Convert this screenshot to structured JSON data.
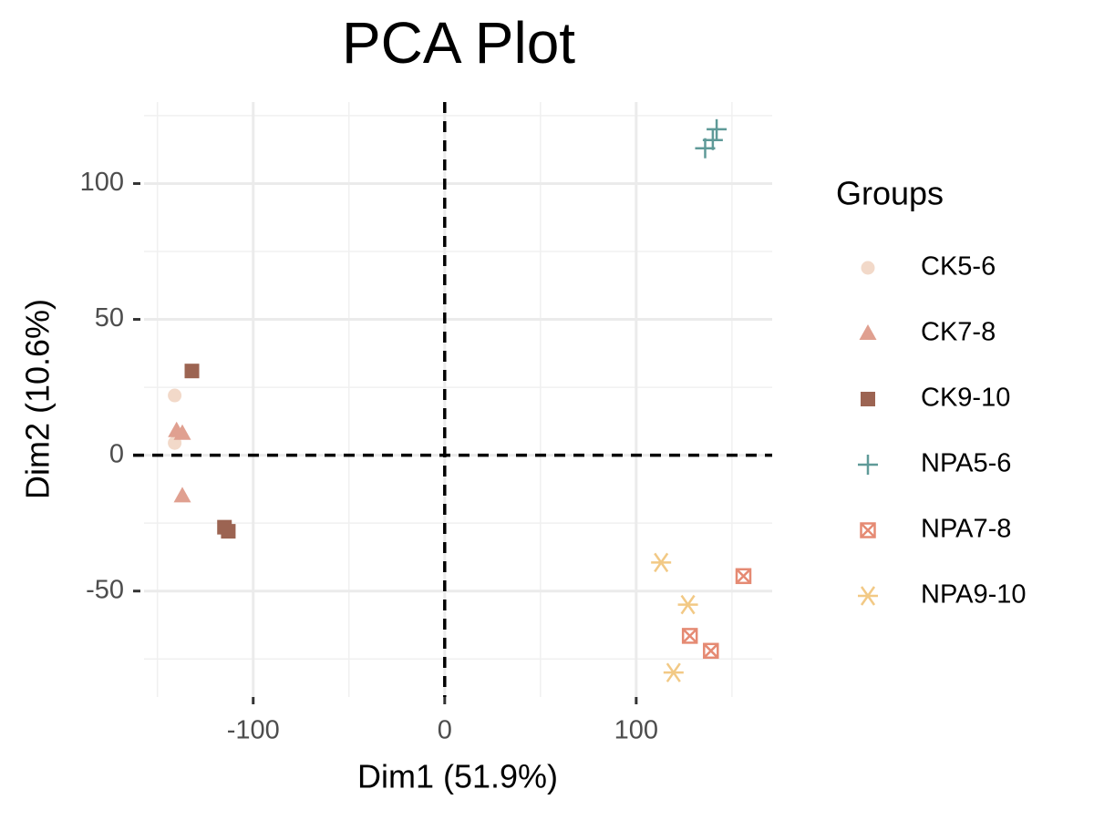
{
  "chart_data": {
    "type": "scatter",
    "title": "PCA Plot",
    "x_label": "Dim1 (51.9%)",
    "y_label": "Dim2 (10.6%)",
    "xlim": [
      -157,
      171
    ],
    "ylim": [
      -89,
      130
    ],
    "xticks": [
      -100,
      0,
      100
    ],
    "yticks": [
      -50,
      0,
      50,
      100
    ],
    "grid": true,
    "zero_lines": true,
    "legend_title": "Groups",
    "legend_position": "right",
    "series": [
      {
        "name": "CK5-6",
        "color": "#f2d9c9",
        "shape": "circle",
        "x": [
          -141,
          -141
        ],
        "y": [
          22,
          4.5
        ]
      },
      {
        "name": "CK7-8",
        "color": "#e0a090",
        "shape": "triangle",
        "x": [
          -140,
          -137,
          -137
        ],
        "y": [
          9,
          8,
          -15
        ]
      },
      {
        "name": "CK9-10",
        "color": "#9c6452",
        "shape": "square",
        "x": [
          -132,
          -115,
          -113
        ],
        "y": [
          31,
          -26.5,
          -28
        ]
      },
      {
        "name": "NPA5-6",
        "color": "#5f9a98",
        "shape": "plus",
        "x": [
          142,
          140,
          136
        ],
        "y": [
          120,
          116,
          113
        ]
      },
      {
        "name": "NPA7-8",
        "color": "#e58a73",
        "shape": "boxcross",
        "x": [
          156,
          128,
          139
        ],
        "y": [
          -44.5,
          -66.5,
          -72
        ]
      },
      {
        "name": "NPA9-10",
        "color": "#f2c985",
        "shape": "asterisk",
        "x": [
          113,
          127,
          119.5
        ],
        "y": [
          -39.5,
          -55,
          -80
        ]
      }
    ]
  }
}
